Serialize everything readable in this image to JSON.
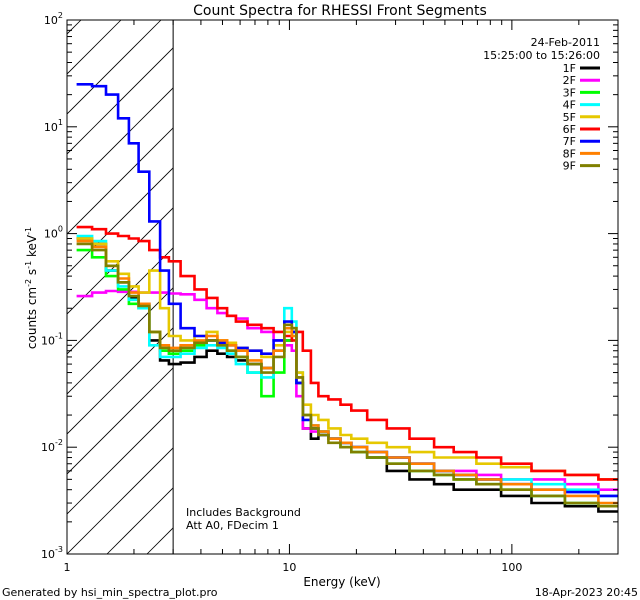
{
  "chart_data": {
    "type": "line",
    "title": "Count Spectra for RHESSI Front Segments",
    "xlabel": "Energy (keV)",
    "ylabel": "counts cm-2 s-1 keV-1",
    "ylabel_parts": {
      "base": "counts cm",
      "exp1": "-2",
      "mid": " s",
      "exp2": "-1",
      "end": " keV",
      "exp3": "-1"
    },
    "xscale": "log",
    "yscale": "log",
    "xlim": [
      1,
      300
    ],
    "ylim": [
      0.001,
      100
    ],
    "x_ticks": [
      {
        "value": 1,
        "label": "1"
      },
      {
        "value": 10,
        "label": "10"
      },
      {
        "value": 100,
        "label": "100"
      }
    ],
    "y_ticks": [
      {
        "value": 0.001,
        "base": "10",
        "exp": "-3"
      },
      {
        "value": 0.01,
        "base": "10",
        "exp": "-2"
      },
      {
        "value": 0.1,
        "base": "10",
        "exp": "-1"
      },
      {
        "value": 1,
        "base": "10",
        "exp": "0"
      },
      {
        "value": 10,
        "base": "10",
        "exp": "1"
      },
      {
        "value": 100,
        "base": "10",
        "exp": "2"
      }
    ],
    "hatched_region": {
      "from": 1,
      "to": 3
    },
    "legend_placement": "top-right",
    "date": "24-Feb-2011",
    "time_range": "15:25:00 to 15:26:00",
    "annotations": [
      "Includes Background",
      "Att A0, FDecim 1"
    ],
    "series": [
      {
        "name": "1F",
        "color": "#000000",
        "x": [
          1.2,
          1.4,
          1.6,
          1.8,
          2.0,
          2.2,
          2.5,
          2.75,
          3.0,
          3.5,
          4.0,
          4.5,
          5.0,
          5.5,
          6.0,
          7.0,
          8.0,
          9.0,
          10.0,
          10.5,
          11.0,
          12.0,
          13.0,
          14.0,
          16.0,
          18.0,
          20.0,
          25.0,
          30.0,
          40.0,
          50.0,
          60.0,
          80.0,
          100.0,
          150.0,
          200.0,
          300.0
        ],
        "y": [
          0.9,
          0.8,
          0.45,
          0.35,
          0.25,
          0.22,
          0.1,
          0.065,
          0.06,
          0.062,
          0.07,
          0.08,
          0.075,
          0.07,
          0.065,
          0.06,
          0.055,
          0.08,
          0.1,
          0.12,
          0.04,
          0.015,
          0.012,
          0.014,
          0.012,
          0.011,
          0.01,
          0.008,
          0.006,
          0.005,
          0.0045,
          0.004,
          0.004,
          0.0035,
          0.003,
          0.0028,
          0.0025
        ]
      },
      {
        "name": "2F",
        "color": "#ff00ff",
        "x": [
          1.2,
          1.4,
          1.6,
          1.8,
          2.0,
          2.2,
          2.5,
          2.75,
          3.0,
          3.5,
          4.0,
          4.5,
          5.0,
          5.5,
          6.0,
          7.0,
          8.0,
          9.0,
          10.0,
          10.5,
          11.0,
          12.0,
          13.0,
          14.0,
          16.0,
          18.0,
          20.0,
          25.0,
          30.0,
          40.0,
          50.0,
          60.0,
          80.0,
          100.0,
          150.0,
          200.0,
          300.0
        ],
        "y": [
          0.26,
          0.28,
          0.29,
          0.285,
          0.285,
          0.28,
          0.28,
          0.28,
          0.275,
          0.27,
          0.24,
          0.2,
          0.18,
          0.17,
          0.16,
          0.13,
          0.12,
          0.1,
          0.09,
          0.08,
          0.03,
          0.015,
          0.014,
          0.013,
          0.012,
          0.011,
          0.01,
          0.009,
          0.008,
          0.007,
          0.006,
          0.006,
          0.0055,
          0.005,
          0.005,
          0.0045,
          0.004
        ]
      },
      {
        "name": "3F",
        "color": "#00ff00",
        "x": [
          1.2,
          1.4,
          1.6,
          1.8,
          2.0,
          2.2,
          2.5,
          2.75,
          3.0,
          3.5,
          4.0,
          4.5,
          5.0,
          5.5,
          6.0,
          7.0,
          8.0,
          9.0,
          10.0,
          10.5,
          11.0,
          12.0,
          13.0,
          14.0,
          16.0,
          18.0,
          20.0,
          25.0,
          30.0,
          40.0,
          50.0,
          60.0,
          80.0,
          100.0,
          150.0,
          200.0,
          300.0
        ],
        "y": [
          0.7,
          0.6,
          0.4,
          0.3,
          0.22,
          0.2,
          0.12,
          0.08,
          0.075,
          0.08,
          0.09,
          0.1,
          0.09,
          0.08,
          0.07,
          0.05,
          0.03,
          0.05,
          0.1,
          0.12,
          0.04,
          0.02,
          0.015,
          0.013,
          0.012,
          0.01,
          0.009,
          0.008,
          0.007,
          0.006,
          0.0055,
          0.005,
          0.0045,
          0.004,
          0.0035,
          0.003,
          0.0028
        ]
      },
      {
        "name": "4F",
        "color": "#00ffff",
        "x": [
          1.2,
          1.4,
          1.6,
          1.8,
          2.0,
          2.2,
          2.5,
          2.75,
          3.0,
          3.5,
          4.0,
          4.5,
          5.0,
          5.5,
          6.0,
          7.0,
          8.0,
          9.0,
          10.0,
          10.5,
          11.0,
          12.0,
          13.0,
          14.0,
          16.0,
          18.0,
          20.0,
          25.0,
          30.0,
          40.0,
          50.0,
          60.0,
          80.0,
          100.0,
          150.0,
          200.0,
          300.0
        ],
        "y": [
          0.95,
          0.85,
          0.45,
          0.32,
          0.24,
          0.2,
          0.09,
          0.07,
          0.07,
          0.075,
          0.085,
          0.09,
          0.085,
          0.075,
          0.06,
          0.05,
          0.045,
          0.08,
          0.2,
          0.15,
          0.05,
          0.02,
          0.016,
          0.014,
          0.012,
          0.011,
          0.01,
          0.009,
          0.008,
          0.007,
          0.006,
          0.0055,
          0.005,
          0.005,
          0.0045,
          0.004,
          0.0035
        ]
      },
      {
        "name": "5F",
        "color": "#e6c800",
        "x": [
          1.2,
          1.4,
          1.6,
          1.8,
          2.0,
          2.2,
          2.5,
          2.75,
          3.0,
          3.5,
          4.0,
          4.5,
          5.0,
          5.5,
          6.0,
          7.0,
          8.0,
          9.0,
          10.0,
          10.5,
          11.0,
          12.0,
          13.0,
          14.0,
          16.0,
          18.0,
          20.0,
          25.0,
          30.0,
          40.0,
          50.0,
          60.0,
          80.0,
          100.0,
          150.0,
          200.0,
          300.0
        ],
        "y": [
          0.9,
          0.8,
          0.55,
          0.42,
          0.32,
          0.28,
          0.45,
          0.2,
          0.11,
          0.1,
          0.11,
          0.12,
          0.1,
          0.095,
          0.085,
          0.08,
          0.07,
          0.09,
          0.12,
          0.13,
          0.05,
          0.025,
          0.02,
          0.018,
          0.015,
          0.013,
          0.012,
          0.011,
          0.01,
          0.009,
          0.008,
          0.008,
          0.007,
          0.0065,
          0.006,
          0.0055,
          0.005
        ]
      },
      {
        "name": "6F",
        "color": "#ff0000",
        "x": [
          1.2,
          1.4,
          1.6,
          1.8,
          2.0,
          2.2,
          2.5,
          2.75,
          3.0,
          3.5,
          4.0,
          4.5,
          5.0,
          5.5,
          6.0,
          7.0,
          8.0,
          9.0,
          10.0,
          10.5,
          11.0,
          12.0,
          13.0,
          14.0,
          16.0,
          18.0,
          20.0,
          25.0,
          30.0,
          40.0,
          50.0,
          60.0,
          80.0,
          100.0,
          150.0,
          200.0,
          300.0
        ],
        "y": [
          1.15,
          1.1,
          1.0,
          0.95,
          0.9,
          0.85,
          0.7,
          0.6,
          0.55,
          0.4,
          0.3,
          0.25,
          0.2,
          0.17,
          0.15,
          0.14,
          0.13,
          0.12,
          0.11,
          0.1,
          0.12,
          0.08,
          0.04,
          0.03,
          0.028,
          0.025,
          0.022,
          0.018,
          0.015,
          0.012,
          0.01,
          0.009,
          0.008,
          0.007,
          0.006,
          0.0055,
          0.005
        ]
      },
      {
        "name": "7F",
        "color": "#0000ff",
        "x": [
          1.2,
          1.4,
          1.6,
          1.8,
          2.0,
          2.2,
          2.5,
          2.75,
          3.0,
          3.5,
          4.0,
          4.5,
          5.0,
          5.5,
          6.0,
          7.0,
          8.0,
          9.0,
          10.0,
          10.5,
          11.0,
          12.0,
          13.0,
          14.0,
          16.0,
          18.0,
          20.0,
          25.0,
          30.0,
          40.0,
          50.0,
          60.0,
          80.0,
          100.0,
          150.0,
          200.0,
          300.0
        ],
        "y": [
          25,
          24,
          20,
          12,
          7,
          3.8,
          1.3,
          0.45,
          0.22,
          0.13,
          0.11,
          0.1,
          0.095,
          0.09,
          0.085,
          0.08,
          0.075,
          0.1,
          0.15,
          0.12,
          0.04,
          0.018,
          0.015,
          0.013,
          0.012,
          0.011,
          0.01,
          0.009,
          0.008,
          0.007,
          0.006,
          0.0055,
          0.005,
          0.0045,
          0.004,
          0.0038,
          0.0035
        ]
      },
      {
        "name": "8F",
        "color": "#ff8000",
        "x": [
          1.2,
          1.4,
          1.6,
          1.8,
          2.0,
          2.2,
          2.5,
          2.75,
          3.0,
          3.5,
          4.0,
          4.5,
          5.0,
          5.5,
          6.0,
          7.0,
          8.0,
          9.0,
          10.0,
          10.5,
          11.0,
          12.0,
          13.0,
          14.0,
          16.0,
          18.0,
          20.0,
          25.0,
          30.0,
          40.0,
          50.0,
          60.0,
          80.0,
          100.0,
          150.0,
          200.0,
          300.0
        ],
        "y": [
          0.85,
          0.75,
          0.5,
          0.38,
          0.28,
          0.22,
          0.12,
          0.09,
          0.085,
          0.09,
          0.1,
          0.11,
          0.1,
          0.09,
          0.08,
          0.065,
          0.055,
          0.08,
          0.13,
          0.11,
          0.045,
          0.02,
          0.016,
          0.014,
          0.012,
          0.011,
          0.01,
          0.009,
          0.008,
          0.007,
          0.006,
          0.0055,
          0.005,
          0.0045,
          0.004,
          0.0035,
          0.003
        ]
      },
      {
        "name": "9F",
        "color": "#808000",
        "x": [
          1.2,
          1.4,
          1.6,
          1.8,
          2.0,
          2.2,
          2.5,
          2.75,
          3.0,
          3.5,
          4.0,
          4.5,
          5.0,
          5.5,
          6.0,
          7.0,
          8.0,
          9.0,
          10.0,
          10.5,
          11.0,
          12.0,
          13.0,
          14.0,
          16.0,
          18.0,
          20.0,
          25.0,
          30.0,
          40.0,
          50.0,
          60.0,
          80.0,
          100.0,
          150.0,
          200.0,
          300.0
        ],
        "y": [
          0.8,
          0.7,
          0.5,
          0.35,
          0.26,
          0.21,
          0.12,
          0.085,
          0.08,
          0.085,
          0.095,
          0.1,
          0.09,
          0.08,
          0.07,
          0.06,
          0.05,
          0.07,
          0.14,
          0.13,
          0.045,
          0.02,
          0.015,
          0.013,
          0.011,
          0.01,
          0.009,
          0.008,
          0.007,
          0.006,
          0.0055,
          0.005,
          0.0045,
          0.004,
          0.0035,
          0.003,
          0.0028
        ]
      }
    ]
  },
  "footer": {
    "left": "Generated by hsi_min_spectra_plot.pro",
    "right": "18-Apr-2023 20:45"
  }
}
